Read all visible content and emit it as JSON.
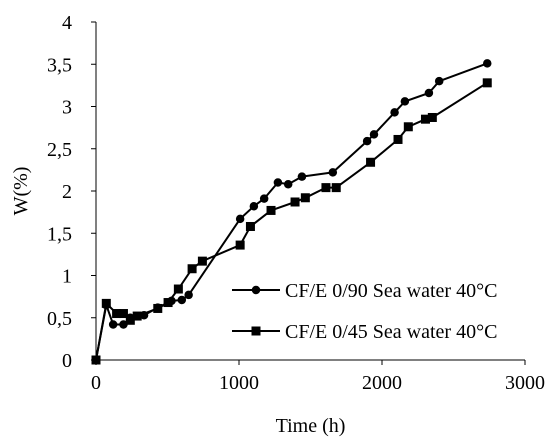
{
  "chart_data": {
    "type": "line",
    "xlabel": "Time (h)",
    "ylabel": "W(%)",
    "xlim": [
      0,
      3000
    ],
    "ylim": [
      0,
      4
    ],
    "x_ticks": [
      "0",
      "1000",
      "2000",
      "3000"
    ],
    "y_ticks": [
      "0",
      "0,5",
      "1",
      "1,5",
      "2",
      "2,5",
      "3",
      "3,5",
      "4"
    ],
    "grid": false,
    "legend_position": "bottom-right",
    "series": [
      {
        "name": "CF/E 0/90 Sea water 40°C",
        "marker": "circle",
        "color": "#000000",
        "x": [
          0,
          72,
          120,
          192,
          240,
          336,
          432,
          528,
          600,
          648,
          1008,
          1104,
          1176,
          1272,
          1344,
          1440,
          1656,
          1896,
          1944,
          2088,
          2160,
          2328,
          2400,
          2736
        ],
        "y": [
          0,
          0.65,
          0.42,
          0.42,
          0.5,
          0.53,
          0.62,
          0.7,
          0.71,
          0.77,
          1.67,
          1.82,
          1.91,
          2.1,
          2.08,
          2.17,
          2.22,
          2.59,
          2.67,
          2.93,
          3.06,
          3.16,
          3.3,
          3.51
        ]
      },
      {
        "name": "CF/E 0/45 Sea water 40°C",
        "marker": "square",
        "color": "#000000",
        "x": [
          0,
          72,
          144,
          192,
          240,
          288,
          432,
          504,
          576,
          672,
          744,
          1008,
          1080,
          1224,
          1392,
          1464,
          1608,
          1680,
          1920,
          2112,
          2184,
          2304,
          2352,
          2736
        ],
        "y": [
          0,
          0.67,
          0.55,
          0.55,
          0.47,
          0.52,
          0.61,
          0.68,
          0.84,
          1.08,
          1.17,
          1.36,
          1.58,
          1.77,
          1.87,
          1.92,
          2.04,
          2.04,
          2.34,
          2.61,
          2.76,
          2.85,
          2.87,
          3.28
        ]
      }
    ]
  }
}
